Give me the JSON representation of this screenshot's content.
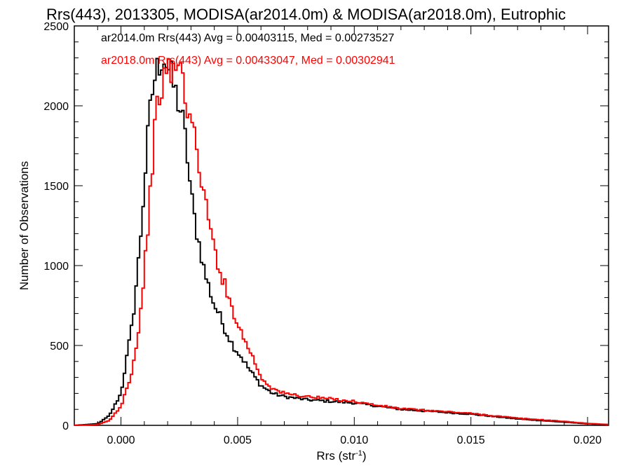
{
  "chart_data": {
    "type": "line",
    "title": "Rrs(443), 2013305, MODISA(ar2014.0m) & MODISA(ar2018.0m), Eutrophic",
    "xlabel": {
      "main": "Rrs (str",
      "sup": "-1",
      "close": ")"
    },
    "ylabel": "Number of Observations",
    "xlim": [
      -0.002,
      0.0209
    ],
    "ylim": [
      0,
      2500
    ],
    "x_ticks": [
      0.0,
      0.005,
      0.01,
      0.015,
      0.02
    ],
    "x_tick_labels": [
      "0.000",
      "0.005",
      "0.010",
      "0.015",
      "0.020"
    ],
    "y_ticks": [
      0,
      500,
      1000,
      1500,
      2000,
      2500
    ],
    "y_tick_labels": [
      "0",
      "500",
      "1000",
      "1500",
      "2000",
      "2500"
    ],
    "grid": false,
    "legend_placement": "top-left",
    "legend": [
      {
        "text": "ar2014.0m Rrs(443) Avg = 0.00403115, Med = 0.00273527",
        "color": "#000000"
      },
      {
        "text": "ar2018.0m Rrs(443) Avg = 0.00433047, Med = 0.00302941",
        "color": "#ff0000"
      }
    ],
    "series": [
      {
        "color": "#000000",
        "x": [
          -0.002,
          -0.001,
          -0.0005,
          0.0,
          0.0005,
          0.0008,
          0.001,
          0.0012,
          0.0014,
          0.0016,
          0.0018,
          0.002,
          0.0022,
          0.0024,
          0.0026,
          0.0028,
          0.003,
          0.0032,
          0.0034,
          0.0036,
          0.0038,
          0.004,
          0.0042,
          0.0044,
          0.0046,
          0.0048,
          0.005,
          0.0052,
          0.0055,
          0.006,
          0.0065,
          0.007,
          0.0075,
          0.008,
          0.009,
          0.01,
          0.011,
          0.012,
          0.013,
          0.014,
          0.015,
          0.016,
          0.017,
          0.018,
          0.019,
          0.02,
          0.0209
        ],
        "y": [
          0,
          10,
          60,
          200,
          650,
          1100,
          1500,
          1900,
          2150,
          2250,
          2320,
          2250,
          2150,
          2050,
          1950,
          1750,
          1450,
          1250,
          1100,
          950,
          850,
          750,
          700,
          620,
          560,
          500,
          460,
          420,
          350,
          250,
          200,
          180,
          170,
          160,
          150,
          140,
          120,
          100,
          90,
          80,
          70,
          55,
          40,
          30,
          20,
          10,
          5
        ]
      },
      {
        "color": "#ff0000",
        "x": [
          -0.002,
          -0.001,
          -0.0005,
          0.0,
          0.0005,
          0.0008,
          0.001,
          0.0012,
          0.0014,
          0.0016,
          0.0018,
          0.002,
          0.0022,
          0.0024,
          0.0026,
          0.0028,
          0.003,
          0.0032,
          0.0034,
          0.0036,
          0.0038,
          0.004,
          0.0042,
          0.0044,
          0.0046,
          0.0048,
          0.005,
          0.0052,
          0.0055,
          0.006,
          0.0065,
          0.007,
          0.0075,
          0.008,
          0.009,
          0.01,
          0.011,
          0.012,
          0.013,
          0.014,
          0.015,
          0.016,
          0.017,
          0.018,
          0.019,
          0.02,
          0.0209
        ],
        "y": [
          0,
          5,
          30,
          120,
          350,
          650,
          950,
          1350,
          1750,
          2050,
          2150,
          2200,
          2220,
          2260,
          2200,
          2050,
          1900,
          1750,
          1600,
          1400,
          1250,
          1100,
          1000,
          900,
          800,
          720,
          650,
          560,
          480,
          300,
          230,
          200,
          190,
          180,
          165,
          150,
          125,
          105,
          95,
          85,
          75,
          60,
          45,
          35,
          25,
          12,
          5
        ]
      }
    ]
  }
}
